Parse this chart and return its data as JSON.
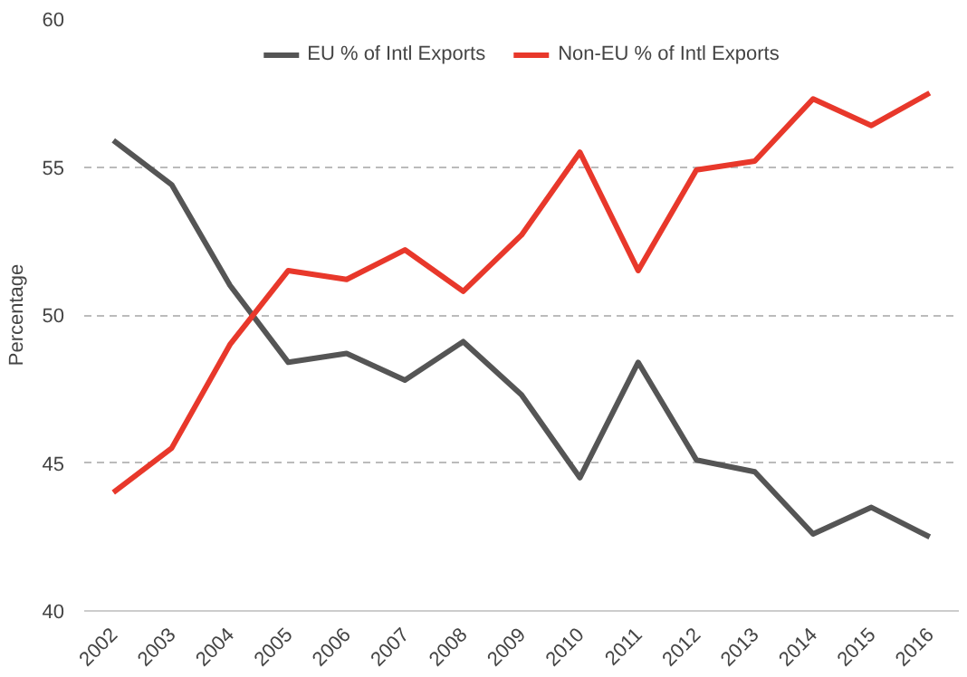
{
  "chart_data": {
    "type": "line",
    "ylabel": "Percentage",
    "categories": [
      "2002",
      "2003",
      "2004",
      "2005",
      "2006",
      "2007",
      "2008",
      "2009",
      "2010",
      "2011",
      "2012",
      "2013",
      "2014",
      "2015",
      "2016"
    ],
    "series": [
      {
        "name": "EU % of Intl Exports",
        "color": "#555555",
        "values": [
          55.9,
          54.4,
          51.0,
          48.4,
          48.7,
          47.8,
          49.1,
          47.3,
          44.5,
          48.4,
          45.1,
          44.7,
          42.6,
          43.5,
          42.5
        ]
      },
      {
        "name": "Non-EU % of Intl Exports",
        "color": "#e8382b",
        "values": [
          44.0,
          45.5,
          49.0,
          51.5,
          51.2,
          52.2,
          50.8,
          52.7,
          55.5,
          51.5,
          54.9,
          55.2,
          57.3,
          56.4,
          57.5
        ]
      }
    ],
    "ylim": [
      40,
      60
    ],
    "yticks": [
      40,
      45,
      50,
      55,
      60
    ],
    "grid": "y",
    "legend": "top",
    "marker": "none",
    "line_style": "solid"
  }
}
